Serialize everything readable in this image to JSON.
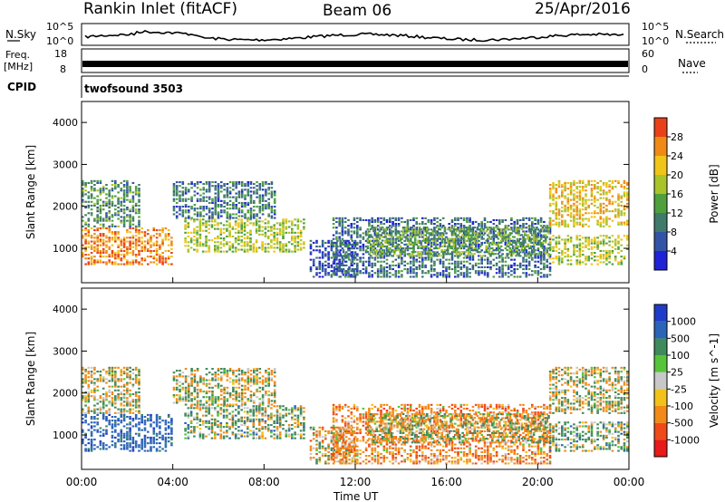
{
  "header": {
    "station": "Rankin Inlet (fitACF)",
    "beam": "Beam 06",
    "date": "25/Apr/2016"
  },
  "strips": {
    "nsky_label": "N.Sky",
    "nsky_ticks": [
      "10^5",
      "10^0"
    ],
    "nsearch_label": "N.Search",
    "nsearch_ticks": [
      "10^5",
      "10^0"
    ],
    "freq_label_top": "Freq.",
    "freq_label_bottom": "[MHz]",
    "freq_ticks": [
      "18",
      "8"
    ],
    "nave_label": "Nave",
    "nave_ticks": [
      "60",
      "0"
    ],
    "cpid_label": "CPID",
    "cpid_value": "twofsound 3503"
  },
  "time_axis": {
    "labels": [
      "00:00",
      "04:00",
      "08:00",
      "12:00",
      "16:00",
      "20:00",
      "00:00"
    ],
    "title": "Time UT"
  },
  "chart_data": [
    {
      "type": "heatmap",
      "name": "power",
      "ylabel": "Slant Range [km]",
      "yticks": [
        1000,
        2000,
        3000,
        4000
      ],
      "ylim": [
        180,
        4500
      ],
      "xlim_hours": [
        0,
        24
      ],
      "colorbar": {
        "label": "Power [dB]",
        "range": [
          0,
          32
        ],
        "ticks": [
          "4",
          "8",
          "12",
          "16",
          "20",
          "24",
          "28"
        ],
        "colors": [
          "#1f23d6",
          "#3354a6",
          "#3f7a6a",
          "#4fa03d",
          "#a8c42a",
          "#f0c419",
          "#f08a17",
          "#e8411a"
        ]
      },
      "bands": [
        {
          "t0": 0.0,
          "t1": 4.0,
          "r0": 600,
          "r1": 1500,
          "level": 26
        },
        {
          "t0": 0.0,
          "t1": 2.5,
          "r0": 1500,
          "r1": 2600,
          "level": 12
        },
        {
          "t0": 4.5,
          "t1": 9.8,
          "r0": 900,
          "r1": 1700,
          "level": 18
        },
        {
          "t0": 4.0,
          "t1": 8.5,
          "r0": 1700,
          "r1": 2600,
          "level": 9
        },
        {
          "t0": 10.0,
          "t1": 12.0,
          "r0": 300,
          "r1": 1200,
          "level": 6
        },
        {
          "t0": 11.0,
          "t1": 20.5,
          "r0": 300,
          "r1": 1700,
          "level": 8
        },
        {
          "t0": 12.5,
          "t1": 20.5,
          "r0": 800,
          "r1": 1500,
          "level": 14
        },
        {
          "t0": 20.5,
          "t1": 24.0,
          "r0": 600,
          "r1": 1300,
          "level": 18
        },
        {
          "t0": 20.5,
          "t1": 24.0,
          "r0": 1500,
          "r1": 2600,
          "level": 22
        }
      ]
    },
    {
      "type": "heatmap",
      "name": "velocity",
      "ylabel": "Slant Range [km]",
      "yticks": [
        1000,
        2000,
        3000,
        4000
      ],
      "ylim": [
        180,
        4500
      ],
      "xlim_hours": [
        0,
        24
      ],
      "colorbar": {
        "label": "Velocity [m s^-1]",
        "ticks": [
          "1000",
          "500",
          "100",
          "25",
          "-25",
          "-100",
          "-500",
          "-1000"
        ],
        "colors": [
          "#1f3cc8",
          "#2b64b8",
          "#3f8a5a",
          "#56c43a",
          "#c8c8c8",
          "#f2c21a",
          "#f28a1a",
          "#ef4a1a",
          "#e81a1a"
        ]
      },
      "bands": [
        {
          "t0": 0.0,
          "t1": 4.0,
          "r0": 600,
          "r1": 1500,
          "level": 500
        },
        {
          "t0": 0.0,
          "t1": 2.5,
          "r0": 1500,
          "r1": 2600,
          "level": 0
        },
        {
          "t0": 4.5,
          "t1": 9.8,
          "r0": 900,
          "r1": 1700,
          "level": 100
        },
        {
          "t0": 4.0,
          "t1": 8.5,
          "r0": 1700,
          "r1": 2600,
          "level": 0
        },
        {
          "t0": 10.0,
          "t1": 12.0,
          "r0": 300,
          "r1": 1200,
          "level": -100
        },
        {
          "t0": 11.0,
          "t1": 20.5,
          "r0": 300,
          "r1": 1700,
          "level": -200
        },
        {
          "t0": 12.5,
          "t1": 20.5,
          "r0": 800,
          "r1": 1500,
          "level": 0
        },
        {
          "t0": 20.5,
          "t1": 24.0,
          "r0": 600,
          "r1": 1300,
          "level": 100
        },
        {
          "t0": 20.5,
          "t1": 24.0,
          "r0": 1500,
          "r1": 2600,
          "level": 0
        }
      ]
    }
  ]
}
